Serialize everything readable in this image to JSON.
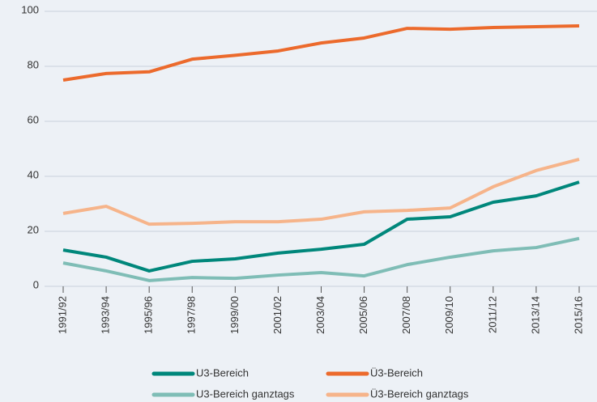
{
  "chart_data": {
    "type": "line",
    "categories": [
      "1991/92",
      "1993/94",
      "1995/96",
      "1997/98",
      "1999/00",
      "2001/02",
      "2003/04",
      "2005/06",
      "2007/08",
      "2009/10",
      "2011/12",
      "2013/14",
      "2015/16"
    ],
    "series": [
      {
        "name": "U3-Bereich",
        "color": "#00877b",
        "values": [
          13.2,
          10.6,
          5.6,
          9.1,
          10,
          12.1,
          13.5,
          15.3,
          24.4,
          25.3,
          30.6,
          32.9,
          37.9
        ]
      },
      {
        "name": "Ü3-Bereich",
        "color": "#ec6a2c",
        "values": [
          75,
          77.4,
          78,
          82.6,
          84,
          85.6,
          88.5,
          90.3,
          93.8,
          93.5,
          94.1,
          94.4,
          94.7
        ]
      },
      {
        "name": "U3-Bereich ganztags",
        "color": "#7fbdb6",
        "values": [
          8.5,
          5.6,
          2.1,
          3.2,
          2.9,
          4.1,
          5,
          3.8,
          7.9,
          10.6,
          12.9,
          14.1,
          17.4
        ]
      },
      {
        "name": "Ü3-Bereich ganztags",
        "color": "#f6b48a",
        "values": [
          26.5,
          29.1,
          22.6,
          22.9,
          23.5,
          23.5,
          24.4,
          27.1,
          27.6,
          28.5,
          36.2,
          42.1,
          46.2
        ]
      }
    ],
    "ylim": [
      0,
      100
    ],
    "yticks": [
      0,
      20,
      40,
      60,
      80,
      100
    ],
    "grid": true,
    "legend": "bottom"
  }
}
